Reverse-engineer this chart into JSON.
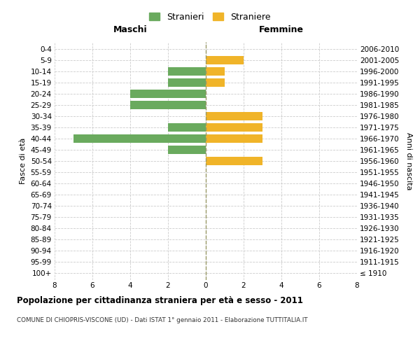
{
  "age_groups": [
    "100+",
    "95-99",
    "90-94",
    "85-89",
    "80-84",
    "75-79",
    "70-74",
    "65-69",
    "60-64",
    "55-59",
    "50-54",
    "45-49",
    "40-44",
    "35-39",
    "30-34",
    "25-29",
    "20-24",
    "15-19",
    "10-14",
    "5-9",
    "0-4"
  ],
  "birth_years": [
    "≤ 1910",
    "1911-1915",
    "1916-1920",
    "1921-1925",
    "1926-1930",
    "1931-1935",
    "1936-1940",
    "1941-1945",
    "1946-1950",
    "1951-1955",
    "1956-1960",
    "1961-1965",
    "1966-1970",
    "1971-1975",
    "1976-1980",
    "1981-1985",
    "1986-1990",
    "1991-1995",
    "1996-2000",
    "2001-2005",
    "2006-2010"
  ],
  "maschi": [
    0,
    0,
    0,
    0,
    0,
    0,
    0,
    0,
    0,
    0,
    0,
    2,
    7,
    2,
    0,
    4,
    4,
    2,
    2,
    0,
    0
  ],
  "femmine": [
    0,
    0,
    0,
    0,
    0,
    0,
    0,
    0,
    0,
    0,
    3,
    0,
    3,
    3,
    3,
    0,
    0,
    1,
    1,
    2,
    0
  ],
  "color_maschi": "#6aaa5e",
  "color_femmine": "#f0b429",
  "title": "Popolazione per cittadinanza straniera per età e sesso - 2011",
  "subtitle": "COMUNE DI CHIOPRIS-VISCONE (UD) - Dati ISTAT 1° gennaio 2011 - Elaborazione TUTTITALIA.IT",
  "ylabel_left": "Fasce di età",
  "ylabel_right": "Anni di nascita",
  "xlabel_left": "Maschi",
  "xlabel_right": "Femmine",
  "legend_maschi": "Stranieri",
  "legend_femmine": "Straniere",
  "xlim": 8,
  "background_color": "#ffffff",
  "grid_color": "#cccccc"
}
